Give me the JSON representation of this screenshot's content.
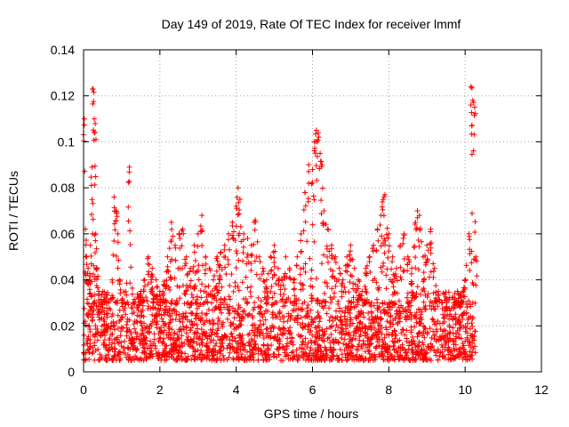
{
  "chart_data": {
    "type": "scatter",
    "title": "Day 149 of 2019, Rate Of TEC Index for receiver lmmf",
    "xlabel": "GPS time / hours",
    "ylabel": "ROTI / TECUs",
    "xlim": [
      0,
      12
    ],
    "ylim": [
      0,
      0.14
    ],
    "xticks": [
      0,
      2,
      4,
      6,
      8,
      10,
      12
    ],
    "xtick_labels": [
      "0",
      "2",
      "4",
      "6",
      "8",
      "10",
      "12"
    ],
    "yticks": [
      0,
      0.02,
      0.04,
      0.06,
      0.08,
      0.1,
      0.12,
      0.14
    ],
    "ytick_labels": [
      "0",
      "0.02",
      "0.04",
      "0.06",
      "0.08",
      "0.1",
      "0.12",
      "0.14"
    ],
    "grid": true,
    "marker": "plus",
    "series": [
      {
        "name": "ROTI",
        "color": "#ff0000",
        "x": [
          0.02,
          0.05,
          0.08,
          0.12,
          0.15,
          0.18,
          0.22,
          0.25,
          0.28,
          0.3,
          0.32,
          0.35,
          0.4,
          0.45,
          0.5,
          0.55,
          0.6,
          0.65,
          0.7,
          0.75,
          0.8,
          0.85,
          0.9,
          0.95,
          1.0,
          1.1,
          1.2,
          1.3,
          1.4,
          1.5,
          1.6,
          1.7,
          1.8,
          1.9,
          2.0,
          2.1,
          2.2,
          2.3,
          2.4,
          2.5,
          2.6,
          2.7,
          2.8,
          2.9,
          3.0,
          3.1,
          3.2,
          3.3,
          3.4,
          3.5,
          3.6,
          3.7,
          3.8,
          3.9,
          4.0,
          4.05,
          4.1,
          4.2,
          4.3,
          4.4,
          4.5,
          4.6,
          4.7,
          4.8,
          4.9,
          5.0,
          5.1,
          5.2,
          5.3,
          5.4,
          5.5,
          5.6,
          5.7,
          5.8,
          5.9,
          6.0,
          6.05,
          6.1,
          6.15,
          6.2,
          6.25,
          6.3,
          6.4,
          6.5,
          6.6,
          6.7,
          6.8,
          6.9,
          7.0,
          7.1,
          7.2,
          7.3,
          7.4,
          7.5,
          7.6,
          7.7,
          7.8,
          7.85,
          7.9,
          8.0,
          8.1,
          8.2,
          8.3,
          8.4,
          8.5,
          8.6,
          8.7,
          8.75,
          8.8,
          8.9,
          9.0,
          9.1,
          9.2,
          9.3,
          9.4,
          9.5,
          9.6,
          9.7,
          9.8,
          9.9,
          10.0,
          10.1,
          10.15,
          10.2,
          10.25,
          10.28
        ],
        "y": [
          0.11,
          0.062,
          0.05,
          0.045,
          0.04,
          0.055,
          0.089,
          0.123,
          0.11,
          0.104,
          0.06,
          0.045,
          0.035,
          0.03,
          0.028,
          0.025,
          0.032,
          0.03,
          0.027,
          0.04,
          0.076,
          0.07,
          0.06,
          0.04,
          0.03,
          0.025,
          0.089,
          0.03,
          0.028,
          0.035,
          0.04,
          0.05,
          0.045,
          0.04,
          0.035,
          0.038,
          0.05,
          0.065,
          0.055,
          0.06,
          0.062,
          0.05,
          0.045,
          0.055,
          0.06,
          0.068,
          0.05,
          0.045,
          0.04,
          0.05,
          0.052,
          0.055,
          0.06,
          0.065,
          0.072,
          0.08,
          0.075,
          0.06,
          0.058,
          0.055,
          0.066,
          0.05,
          0.045,
          0.04,
          0.05,
          0.055,
          0.045,
          0.04,
          0.05,
          0.045,
          0.04,
          0.05,
          0.06,
          0.078,
          0.09,
          0.088,
          0.1,
          0.105,
          0.104,
          0.095,
          0.09,
          0.07,
          0.062,
          0.055,
          0.05,
          0.045,
          0.04,
          0.05,
          0.055,
          0.045,
          0.04,
          0.035,
          0.045,
          0.05,
          0.055,
          0.062,
          0.068,
          0.075,
          0.077,
          0.06,
          0.05,
          0.045,
          0.055,
          0.06,
          0.05,
          0.045,
          0.065,
          0.07,
          0.068,
          0.05,
          0.055,
          0.062,
          0.045,
          0.035,
          0.03,
          0.028,
          0.025,
          0.03,
          0.035,
          0.03,
          0.04,
          0.06,
          0.124,
          0.118,
          0.115,
          0.05
        ]
      }
    ],
    "dense_baseline_range": [
      0.005,
      0.03
    ]
  }
}
